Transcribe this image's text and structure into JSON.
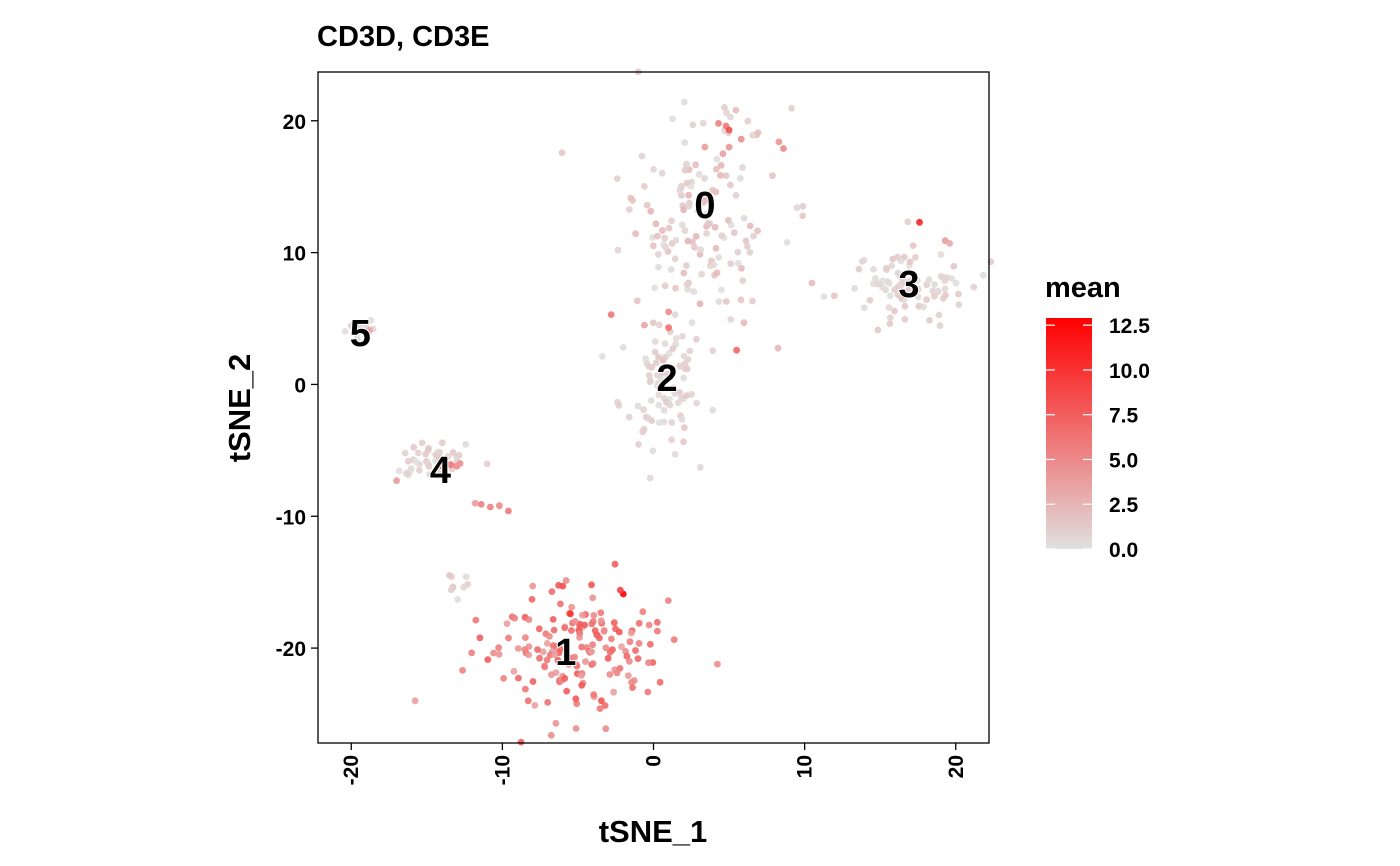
{
  "chart_data": {
    "type": "scatter",
    "title": "CD3D, CD3E",
    "xlabel": "tSNE_1",
    "ylabel": "tSNE_2",
    "xlim": [
      -22.2,
      22.2
    ],
    "ylim": [
      -27.2,
      23.7
    ],
    "x_ticks": [
      -20,
      -10,
      0,
      10,
      20
    ],
    "y_ticks": [
      -20,
      -10,
      0,
      10,
      20
    ],
    "x_tick_labels": [
      "-20",
      "-10",
      "0",
      "10",
      "20"
    ],
    "y_tick_labels": [
      "-20",
      "-10",
      "0",
      "10",
      "20"
    ],
    "grid": false,
    "color_scale": {
      "title": "mean",
      "min": 0,
      "max": 12.9,
      "low_color": "#e0e0e0",
      "high_color": "#ff0000",
      "breaks": [
        0.0,
        2.5,
        5.0,
        7.5,
        10.0,
        12.5
      ],
      "break_labels": [
        "0.0",
        "2.5",
        "5.0",
        "7.5",
        "10.0",
        "12.5"
      ],
      "placement": "right"
    },
    "cluster_labels": [
      {
        "label": "0",
        "x": 3.4,
        "y": 13.6
      },
      {
        "label": "1",
        "x": -5.8,
        "y": -20.3
      },
      {
        "label": "2",
        "x": 0.9,
        "y": 0.5
      },
      {
        "label": "3",
        "x": 16.9,
        "y": 7.6
      },
      {
        "label": "4",
        "x": -14.1,
        "y": -6.5
      },
      {
        "label": "5",
        "x": -19.4,
        "y": 3.9
      }
    ],
    "clusters": [
      {
        "id": "0",
        "cx": 3.0,
        "cy": 12.5,
        "sx": 2.6,
        "sy": 4.4,
        "n": 150,
        "mean_lo": 0.0,
        "mean_hi": 2.5,
        "hot": [
          {
            "x": 4.8,
            "y": 19.6,
            "v": 6.0
          },
          {
            "x": 5.0,
            "y": 19.3,
            "v": 8.5
          },
          {
            "x": 4.3,
            "y": 19.8,
            "v": 5.5
          },
          {
            "x": 5.8,
            "y": 18.6,
            "v": 4.8
          },
          {
            "x": 8.3,
            "y": 18.4,
            "v": 4.5
          },
          {
            "x": 8.6,
            "y": 17.9,
            "v": 5.0
          },
          {
            "x": 3.4,
            "y": 18.0,
            "v": 4.0
          },
          {
            "x": 5.0,
            "y": 18.0,
            "v": 4.5
          },
          {
            "x": 4.6,
            "y": 17.5,
            "v": 3.5
          }
        ]
      },
      {
        "id": "1",
        "cx": -5.6,
        "cy": -20.3,
        "sx": 3.0,
        "sy": 2.4,
        "n": 170,
        "mean_lo": 3.5,
        "mean_hi": 8.0,
        "hot": [
          {
            "x": -2.0,
            "y": -15.9,
            "v": 12.9
          },
          {
            "x": -2.2,
            "y": -15.6,
            "v": 9.0
          },
          {
            "x": -4.1,
            "y": -15.2,
            "v": 8.0
          },
          {
            "x": -5.5,
            "y": -17.4,
            "v": 10.0
          },
          {
            "x": -6.0,
            "y": -15.3,
            "v": 8.5
          }
        ]
      },
      {
        "id": "2",
        "cx": 0.6,
        "cy": -0.2,
        "sx": 1.4,
        "sy": 2.3,
        "n": 80,
        "mean_lo": 0.0,
        "mean_hi": 1.5,
        "hot": [
          {
            "x": -2.8,
            "y": 5.3,
            "v": 6.0
          },
          {
            "x": 1.0,
            "y": 4.3,
            "v": 6.5
          },
          {
            "x": 1.0,
            "y": 5.5,
            "v": 5.0
          },
          {
            "x": 5.5,
            "y": 2.6,
            "v": 7.0
          },
          {
            "x": -0.6,
            "y": 4.5,
            "v": 3.5
          }
        ]
      },
      {
        "id": "3",
        "cx": 16.2,
        "cy": 7.6,
        "sx": 2.4,
        "sy": 1.5,
        "n": 90,
        "mean_lo": 0.0,
        "mean_hi": 1.5,
        "hot": [
          {
            "x": 17.6,
            "y": 12.3,
            "v": 11.0
          },
          {
            "x": 19.3,
            "y": 10.9,
            "v": 4.0
          },
          {
            "x": 19.6,
            "y": 10.7,
            "v": 3.0
          }
        ]
      },
      {
        "id": "4",
        "cx": -14.6,
        "cy": -5.8,
        "sx": 1.3,
        "sy": 0.8,
        "n": 45,
        "mean_lo": 0.0,
        "mean_hi": 1.5,
        "hot": [
          {
            "x": -13.4,
            "y": -6.1,
            "v": 6.0
          },
          {
            "x": -13.0,
            "y": -6.2,
            "v": 5.0
          },
          {
            "x": -12.8,
            "y": -6.0,
            "v": 4.5
          },
          {
            "x": -14.0,
            "y": -6.2,
            "v": 5.5
          },
          {
            "x": -17.0,
            "y": -7.3,
            "v": 4.0
          },
          {
            "x": -11.4,
            "y": -9.1,
            "v": 5.5
          },
          {
            "x": -10.8,
            "y": -9.3,
            "v": 5.5
          },
          {
            "x": -10.2,
            "y": -9.2,
            "v": 5.0
          },
          {
            "x": -9.6,
            "y": -9.6,
            "v": 6.0
          },
          {
            "x": -11.8,
            "y": -9.0,
            "v": 4.0
          }
        ]
      },
      {
        "id": "5",
        "cx": -19.6,
        "cy": 4.3,
        "sx": 0.5,
        "sy": 0.3,
        "n": 15,
        "mean_lo": 0.0,
        "mean_hi": 0.8,
        "hot": [
          {
            "x": -18.8,
            "y": 4.1,
            "v": 3.5
          }
        ]
      },
      {
        "id": "4-tail",
        "cx": -13.2,
        "cy": -15.2,
        "sx": 0.5,
        "sy": 0.6,
        "n": 8,
        "mean_lo": 0.0,
        "mean_hi": 1.5,
        "hot": []
      }
    ]
  }
}
